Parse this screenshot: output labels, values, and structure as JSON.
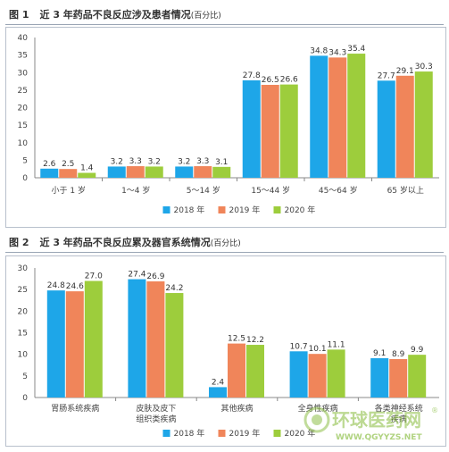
{
  "figures": [
    {
      "label": "图 1",
      "title": "近 3 年药品不良反应涉及患者情况",
      "unit": "(百分比)"
    },
    {
      "label": "图 2",
      "title": "近 3 年药品不良反应累及器官系统情况",
      "unit": "(百分比)"
    }
  ],
  "chart_data": [
    {
      "type": "bar",
      "categories": [
        "小于 1 岁",
        "1～4 岁",
        "5～14 岁",
        "15～44 岁",
        "45～64 岁",
        "65 岁以上"
      ],
      "series": [
        {
          "name": "2018 年",
          "color": "#1ea6e8",
          "values": [
            2.6,
            3.2,
            3.2,
            27.8,
            34.8,
            27.7
          ]
        },
        {
          "name": "2019 年",
          "color": "#f0855a",
          "values": [
            2.5,
            3.3,
            3.3,
            26.5,
            34.3,
            29.1
          ]
        },
        {
          "name": "2020 年",
          "color": "#9dcd3c",
          "values": [
            1.4,
            3.2,
            3.1,
            26.6,
            35.4,
            30.3
          ]
        }
      ],
      "ylim": [
        0,
        40
      ],
      "yticks": [
        0,
        5,
        10,
        15,
        20,
        25,
        30,
        35,
        40
      ],
      "grid": false,
      "legend": "bottom-center",
      "data_labels": true
    },
    {
      "type": "bar",
      "categories": [
        "胃肠系统疾病",
        "皮肤及皮下\n组织类疾病",
        "其他疾病",
        "全身性疾病",
        "各类神经系统\n疾病"
      ],
      "series": [
        {
          "name": "2018 年",
          "color": "#1ea6e8",
          "values": [
            24.8,
            27.4,
            2.4,
            10.7,
            9.1
          ]
        },
        {
          "name": "2019 年",
          "color": "#f0855a",
          "values": [
            24.6,
            26.9,
            12.5,
            10.1,
            8.9
          ]
        },
        {
          "name": "2020 年",
          "color": "#9dcd3c",
          "values": [
            27.0,
            24.2,
            12.2,
            11.1,
            9.9
          ]
        }
      ],
      "ylim": [
        0,
        30
      ],
      "yticks": [
        0,
        5,
        10,
        15,
        20,
        25,
        30
      ],
      "grid": false,
      "legend": "bottom-center",
      "data_labels": true
    }
  ],
  "watermark": {
    "cn": "环球医药网",
    "url": "WWW.QGYYZS.NET",
    "reg": "®"
  }
}
